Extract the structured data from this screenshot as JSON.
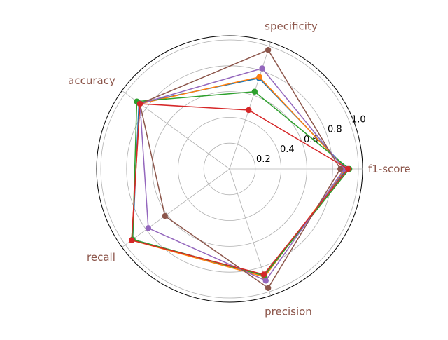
{
  "chart_data": {
    "type": "radar",
    "axes": [
      "f1-score",
      "specificity",
      "accuracy",
      "recall",
      "precision"
    ],
    "rlim": [
      0,
      1.0
    ],
    "r_ticks": [
      0.2,
      0.4,
      0.6,
      0.8,
      1.0
    ],
    "r_tick_labels": [
      "0.2",
      "0.4",
      "0.6",
      "0.8",
      "1.0"
    ],
    "grid": true,
    "legend": "none",
    "colors": {
      "axis_label": "#8c564b",
      "grid": "#b0b0b0",
      "outer_ring": "#000000"
    },
    "series": [
      {
        "color": "#1f77b4",
        "values": [
          0.91,
          0.74,
          0.87,
          0.93,
          0.87
        ]
      },
      {
        "color": "#ff7f0e",
        "values": [
          0.9,
          0.75,
          0.86,
          0.94,
          0.88
        ]
      },
      {
        "color": "#2ca02c",
        "values": [
          0.93,
          0.63,
          0.89,
          0.93,
          0.87
        ]
      },
      {
        "color": "#9467bd",
        "values": [
          0.89,
          0.82,
          0.86,
          0.78,
          0.91
        ]
      },
      {
        "color": "#8c564b",
        "values": [
          0.86,
          0.97,
          0.86,
          0.62,
          0.97
        ]
      },
      {
        "color": "#d62728",
        "values": [
          0.92,
          0.48,
          0.86,
          0.94,
          0.86
        ]
      }
    ]
  }
}
